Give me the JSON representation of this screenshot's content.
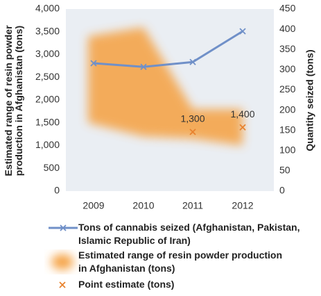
{
  "chart_data": {
    "type": "line",
    "categories": [
      "2009",
      "2010",
      "2011",
      "2012"
    ],
    "ylabel": "Estimated range of resin powder production in Afghanistan (tons)",
    "y2label": "Quantity seized (tons)",
    "ylim": [
      0,
      4000
    ],
    "yticks": [
      0,
      {
        "value": 500,
        "label": "500"
      },
      {
        "value": 1000,
        "label": "1,000"
      },
      {
        "value": 1500,
        "label": "1,500"
      },
      {
        "value": 2000,
        "label": "2,000"
      },
      {
        "value": 2500,
        "label": "2,500"
      },
      {
        "value": 3000,
        "label": "3,000"
      },
      {
        "value": 3500,
        "label": "3,500"
      },
      {
        "value": 4000,
        "label": "4,000"
      }
    ],
    "y2lim": [
      0,
      450
    ],
    "y2ticks": [
      0,
      50,
      100,
      150,
      200,
      250,
      300,
      350,
      400,
      450
    ],
    "series": [
      {
        "name": "Tons of cannabis seized (Afghanistan, Pakistan, Islamic Republic of Iran)",
        "color": "#7090c8",
        "axis": "y2",
        "values": [
          316,
          307,
          319,
          395
        ]
      },
      {
        "name": "Estimated range of resin powder production in Afghanistan (tons)",
        "color": "#f5a040",
        "low": [
          1500,
          1200,
          1150,
          1000
        ],
        "high": [
          3400,
          3600,
          1800,
          1800
        ]
      },
      {
        "name": "Point estimate (tons)",
        "color": "#e8822e",
        "values": [
          null,
          null,
          1300,
          1400
        ],
        "value_labels": [
          null,
          null,
          "1,300",
          "1,400"
        ]
      }
    ]
  }
}
